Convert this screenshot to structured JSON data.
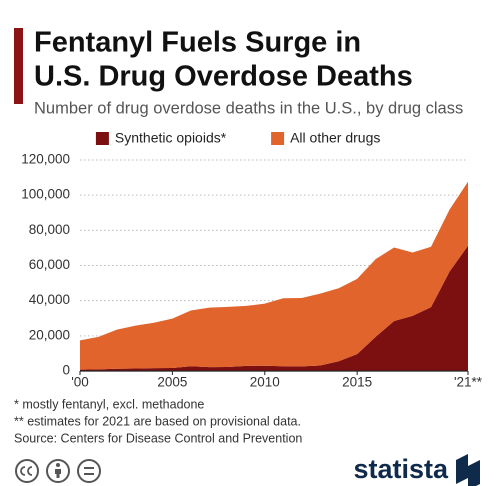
{
  "chart_data": {
    "type": "stacked_area",
    "title": [
      "Fentanyl Fuels Surge in",
      "U.S. Drug Overdose Deaths"
    ],
    "subtitle": "Number of drug overdose deaths in the U.S., by drug class",
    "x": [
      2000,
      2001,
      2002,
      2003,
      2004,
      2005,
      2006,
      2007,
      2008,
      2009,
      2010,
      2011,
      2012,
      2013,
      2014,
      2015,
      2016,
      2017,
      2018,
      2019,
      2020,
      2021
    ],
    "series": [
      {
        "name": "Synthetic opioids*",
        "color": "#7c0f0f",
        "values": [
          782,
          957,
          1295,
          1400,
          1664,
          1742,
          2707,
          2213,
          2306,
          2946,
          3007,
          2666,
          2628,
          3105,
          5544,
          9580,
          19413,
          28466,
          31335,
          36359,
          56516,
          71238
        ]
      },
      {
        "name": "All other drugs",
        "color": "#e2642d",
        "values": [
          16633,
          18437,
          22223,
          24385,
          25760,
          28071,
          31718,
          33797,
          34144,
          34058,
          35322,
          38674,
          38874,
          40877,
          41511,
          42824,
          44219,
          41771,
          36032,
          34271,
          35283,
          36384
        ]
      }
    ],
    "xlim": [
      2000,
      2021
    ],
    "xticks": [
      {
        "value": 2000,
        "label": "'00"
      },
      2005,
      2010,
      2015,
      {
        "value": 2021,
        "label": "'21**"
      }
    ],
    "ylim": [
      0,
      120000
    ],
    "yticks": [
      0,
      {
        "value": 20000,
        "label": "20,000"
      },
      {
        "value": 40000,
        "label": "40,000"
      },
      {
        "value": 60000,
        "label": "60,000"
      },
      {
        "value": 80000,
        "label": "80,000"
      },
      {
        "value": 100000,
        "label": "100,000"
      },
      {
        "value": 120000,
        "label": "120,000"
      }
    ],
    "grid": true,
    "legend": "top",
    "notes": [
      "*   mostly fentanyl, excl. methadone",
      "** estimates for 2021 are based on provisional data."
    ],
    "source": "Source: Centers for Disease Control and Prevention",
    "brand": "statista"
  }
}
